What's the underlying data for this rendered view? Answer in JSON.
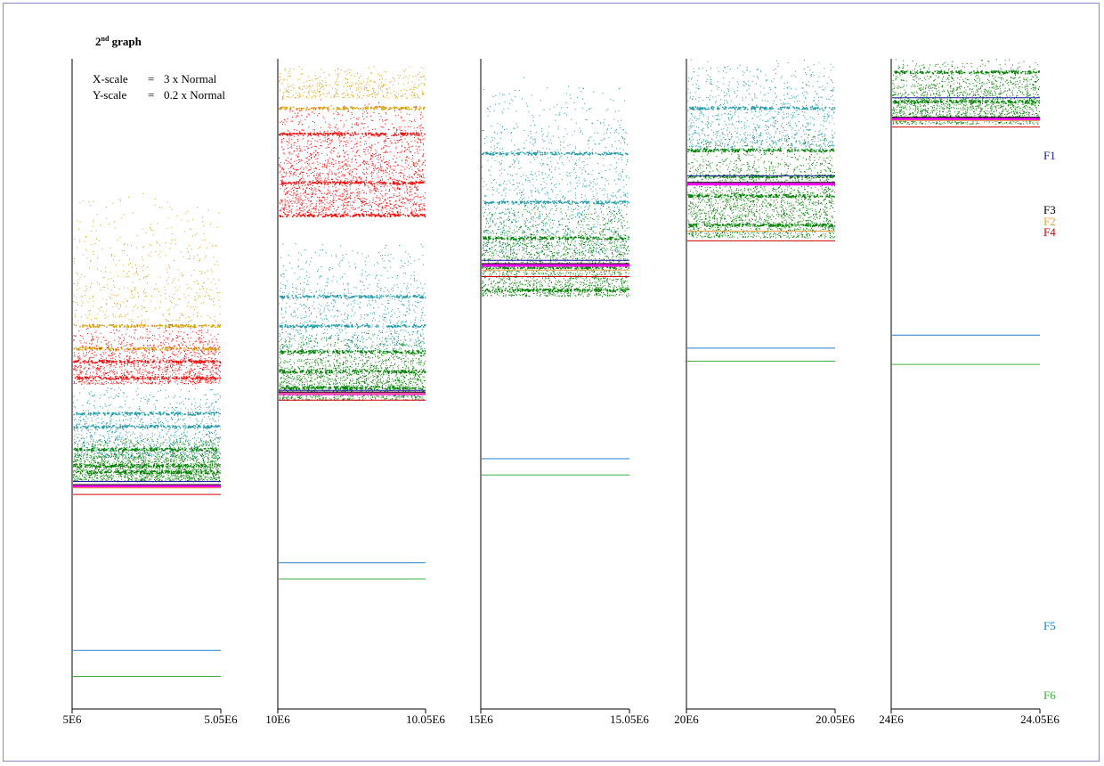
{
  "header": {
    "title_main": "2",
    "title_sup": "nd",
    "title_rest": " graph",
    "xscale_label": "X-scale",
    "xscale_eq": "=",
    "xscale_value": "3 x Normal",
    "yscale_label": "Y-scale",
    "yscale_eq": "=",
    "yscale_value": "0.2 x Normal"
  },
  "colors": {
    "frame": "#8a8cc8",
    "gold": "#d8a000",
    "red": "#ff0000",
    "cyan": "#1e9aa8",
    "green": "#008000",
    "magenta": "#ff00ff",
    "orange": "#f0a040",
    "darkred": "#d00000",
    "blue": "#2080d0",
    "lightgreen": "#40b040",
    "navy": "#000080"
  },
  "chart_data": {
    "type": "scatter",
    "title": "2nd graph",
    "annotations": [
      "X-scale = 3 x Normal",
      "Y-scale = 0.2 x Normal"
    ],
    "legend": [
      {
        "label": "F1",
        "color": "#1a1aa0"
      },
      {
        "label": "F3",
        "color": "#000000"
      },
      {
        "label": "F2",
        "color": "#f0a040"
      },
      {
        "label": "F4",
        "color": "#d00000"
      },
      {
        "label": "F5",
        "color": "#2080d0"
      },
      {
        "label": "F6",
        "color": "#40b040"
      }
    ],
    "panels": [
      {
        "x_range": [
          "5E6",
          "5.05E6"
        ],
        "top": 0.6,
        "bottom": 0.16,
        "bands": [
          {
            "color": "#d8a000",
            "from": 0.6,
            "to": 0.19,
            "n": 500,
            "lines": [
              0.11,
              0.18
            ]
          },
          {
            "color": "#ff0000",
            "from": 0.19,
            "to": 0.0,
            "n": 1200,
            "lines": [
              0.07,
              0.02
            ]
          },
          {
            "color": "#1e9aa8",
            "from": 0.0,
            "to": -0.23,
            "n": 1000,
            "lines": [
              -0.09,
              -0.13
            ]
          },
          {
            "color": "#008000",
            "from": -0.16,
            "to": -0.3,
            "n": 1800,
            "lines": [
              -0.2,
              -0.25,
              -0.27
            ]
          }
        ],
        "f_lines": {
          "F1": -0.3,
          "F3": -0.31,
          "F2": -0.32,
          "F4": -0.34,
          "F5": -0.82,
          "F6": -0.9
        }
      },
      {
        "x_range": [
          "10E6",
          "10.05E6"
        ],
        "top": 0.95,
        "bottom": 0.16,
        "bands": [
          {
            "color": "#d8a000",
            "from": 0.98,
            "to": 0.88,
            "n": 400,
            "lines": [
              0.85
            ]
          },
          {
            "color": "#ff0000",
            "from": 0.88,
            "to": 0.52,
            "n": 2000,
            "lines": [
              0.77,
              0.62,
              0.52
            ]
          },
          {
            "color": "#1e9aa8",
            "from": 0.44,
            "to": 0.1,
            "n": 900,
            "lines": [
              0.27,
              0.18
            ]
          },
          {
            "color": "#008000",
            "from": 0.16,
            "to": -0.05,
            "n": 1800,
            "lines": [
              0.1,
              0.04,
              -0.01
            ]
          }
        ],
        "f_lines": {
          "F1": -0.02,
          "F3": -0.025,
          "F2": -0.03,
          "F4": -0.05,
          "F5": -0.55,
          "F6": -0.6
        }
      },
      {
        "x_range": [
          "15E6",
          "15.05E6"
        ],
        "top": 0.95,
        "bottom": 0.16,
        "bands": [
          {
            "color": "#1e9aa8",
            "from": 0.95,
            "to": 0.4,
            "n": 1200,
            "lines": [
              0.71,
              0.56
            ]
          },
          {
            "color": "#008000",
            "from": 0.56,
            "to": 0.27,
            "n": 2000,
            "lines": [
              0.45,
              0.36,
              0.29
            ]
          }
        ],
        "f_lines": {
          "F1": 0.38,
          "F3": 0.37,
          "F2": 0.35,
          "F4": 0.33,
          "F5": -0.23,
          "F6": -0.28
        }
      },
      {
        "x_range": [
          "20E6",
          "20.05E6"
        ],
        "top": 0.95,
        "bottom": 0.16,
        "bands": [
          {
            "color": "#1e9aa8",
            "from": 1.0,
            "to": 0.72,
            "n": 1000,
            "lines": [
              0.85
            ]
          },
          {
            "color": "#008000",
            "from": 0.78,
            "to": 0.45,
            "n": 2200,
            "lines": [
              0.72,
              0.64,
              0.58,
              0.49
            ]
          }
        ],
        "f_lines": {
          "F1": 0.64,
          "F3": 0.62,
          "F2": 0.47,
          "F4": 0.44,
          "F5": 0.11,
          "F6": 0.07
        }
      },
      {
        "x_range": [
          "24E6",
          "24.05E6"
        ],
        "top": 0.95,
        "bottom": 0.16,
        "bands": [
          {
            "color": "#008000",
            "from": 1.0,
            "to": 0.8,
            "n": 1800,
            "lines": [
              0.96,
              0.87,
              0.82
            ]
          }
        ],
        "f_lines": {
          "F1": 0.88,
          "F3": 0.82,
          "F2": 0.81,
          "F4": 0.79,
          "F5": 0.15,
          "F6": 0.06
        }
      }
    ]
  }
}
